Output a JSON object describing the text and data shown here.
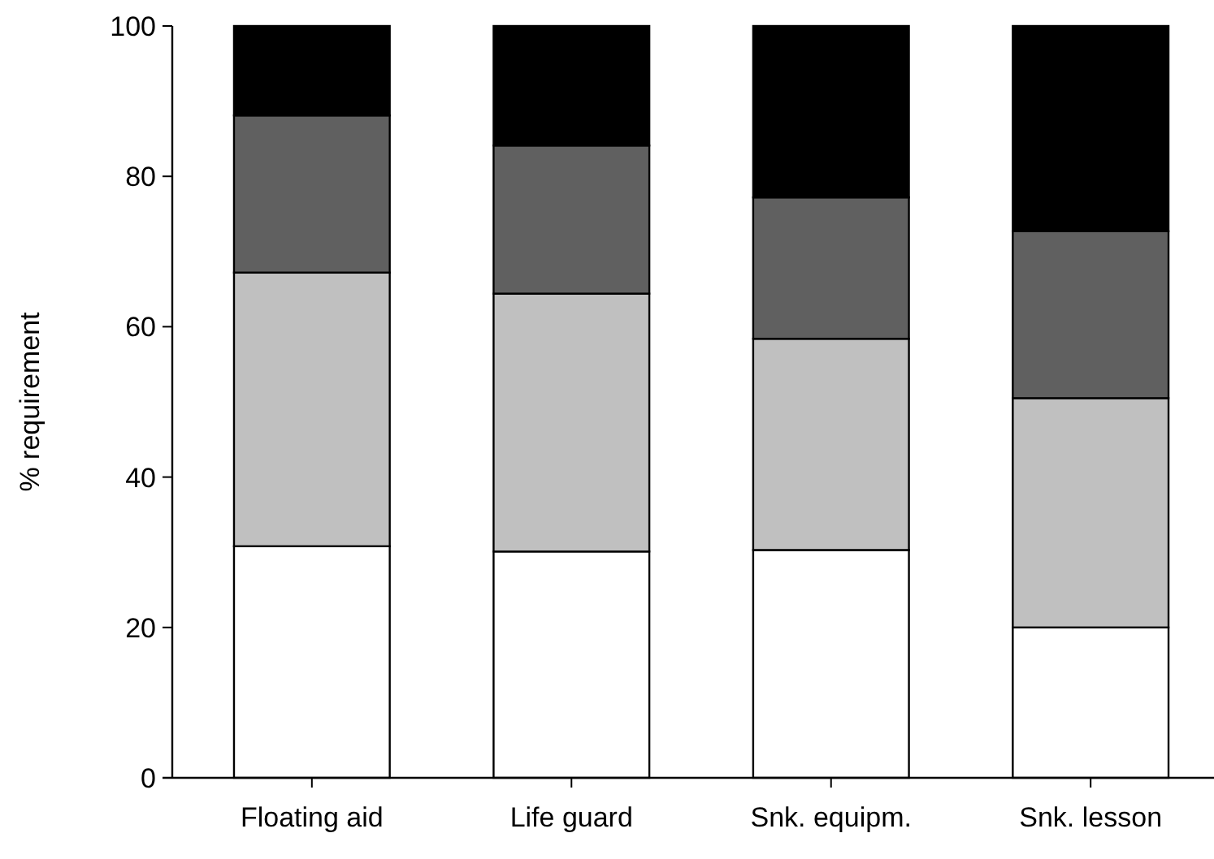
{
  "chart_data": {
    "type": "bar",
    "stacked": true,
    "ylabel": "% requirement",
    "categories": [
      "Floating aid",
      "Life guard",
      "Snk. equipm.",
      "Snk. lesson"
    ],
    "series": [
      {
        "color": "#ffffff",
        "values": [
          30.8,
          30.1,
          30.3,
          20.0
        ]
      },
      {
        "color": "#c0c0c0",
        "values": [
          36.4,
          34.3,
          28.1,
          30.5
        ]
      },
      {
        "color": "#606060",
        "values": [
          20.9,
          19.7,
          18.8,
          22.2
        ]
      },
      {
        "color": "#000000",
        "values": [
          11.9,
          15.9,
          22.8,
          27.3
        ]
      }
    ],
    "ylim": [
      0,
      100
    ],
    "yticks": [
      0,
      20,
      40,
      60,
      80,
      100
    ]
  }
}
